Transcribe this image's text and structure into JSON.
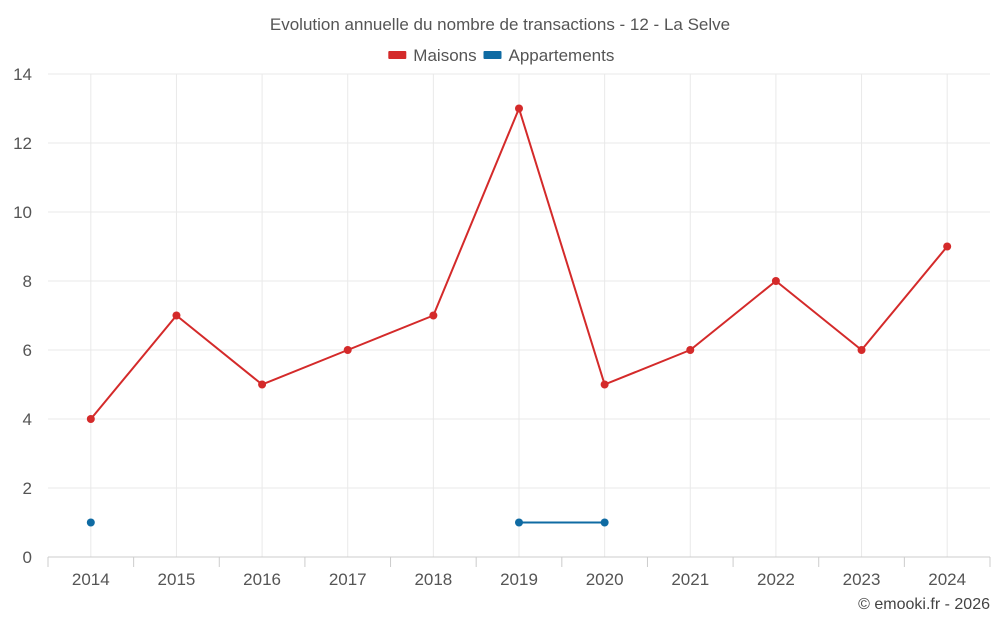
{
  "chart_data": {
    "type": "line",
    "title": "Evolution annuelle du nombre de transactions - 12 - La Selve",
    "categories": [
      "2014",
      "2015",
      "2016",
      "2017",
      "2018",
      "2019",
      "2020",
      "2021",
      "2022",
      "2023",
      "2024"
    ],
    "series": [
      {
        "name": "Maisons",
        "color": "#d42a2a",
        "values": [
          4,
          7,
          5,
          6,
          7,
          13,
          5,
          6,
          8,
          6,
          9
        ]
      },
      {
        "name": "Appartements",
        "color": "#0f6ba3",
        "values": [
          1,
          null,
          null,
          null,
          null,
          1,
          1,
          null,
          null,
          null,
          null
        ]
      }
    ],
    "ylim": [
      0,
      14
    ],
    "yticks": [
      0,
      2,
      4,
      6,
      8,
      10,
      12,
      14
    ],
    "xlabel": "",
    "ylabel": "",
    "grid": true,
    "legend_position": "top-center"
  },
  "credit": "© emooki.fr - 2026"
}
